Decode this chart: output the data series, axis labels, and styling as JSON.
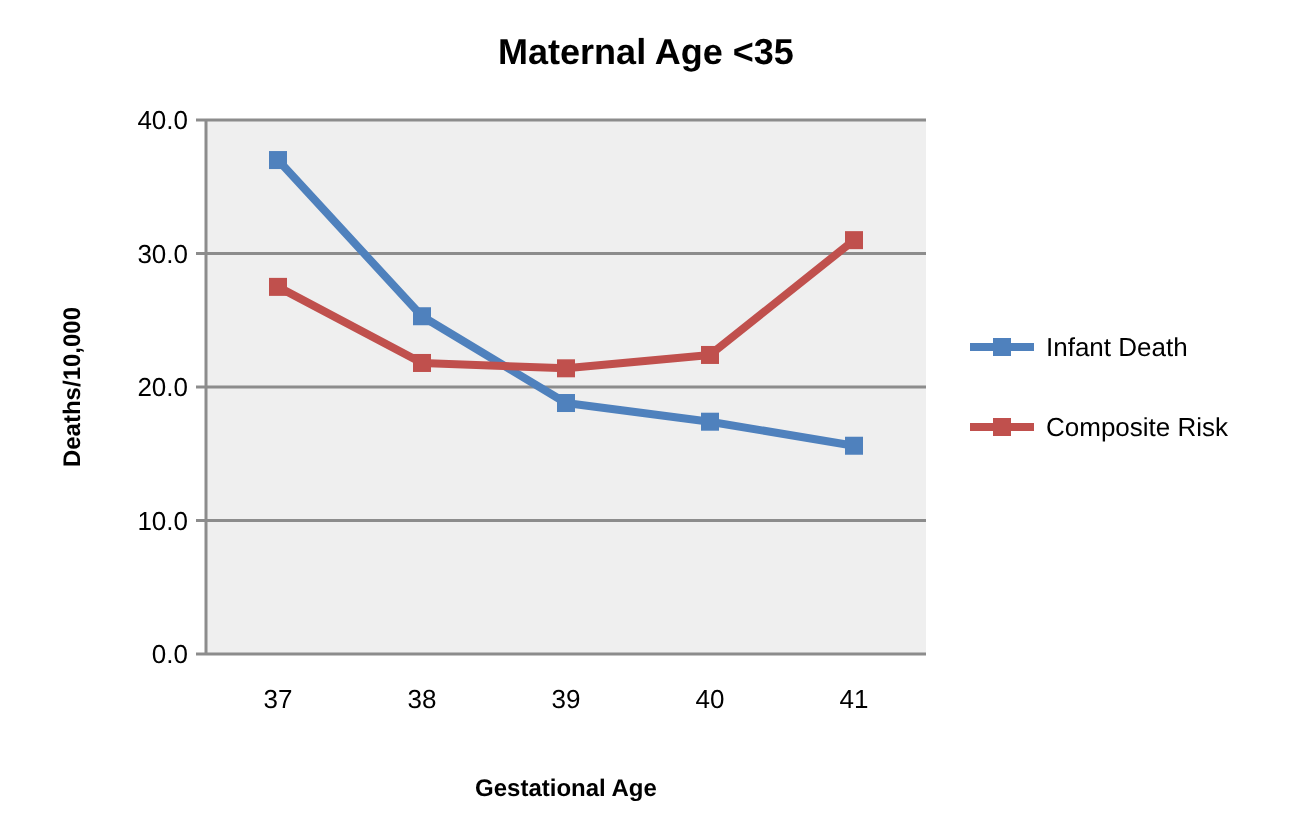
{
  "chart_data": {
    "type": "line",
    "title": "Maternal Age <35",
    "xlabel": "Gestational Age",
    "ylabel": "Deaths/10,000",
    "categories": [
      "37",
      "38",
      "39",
      "40",
      "41"
    ],
    "series": [
      {
        "name": "Infant Death",
        "color": "#4f81bd",
        "values": [
          37.0,
          25.3,
          18.8,
          17.4,
          15.6
        ]
      },
      {
        "name": "Composite Risk",
        "color": "#c0504d",
        "values": [
          27.5,
          21.8,
          21.4,
          22.4,
          31.0
        ]
      }
    ],
    "ylim": [
      0,
      40
    ],
    "yticks": [
      {
        "value": 0,
        "label": "0.0"
      },
      {
        "value": 10,
        "label": "10.0"
      },
      {
        "value": 20,
        "label": "20.0"
      },
      {
        "value": 30,
        "label": "30.0"
      },
      {
        "value": 40,
        "label": "40.0"
      }
    ],
    "grid": "y",
    "legend": "right",
    "marker": "square",
    "line_style": "solid"
  }
}
